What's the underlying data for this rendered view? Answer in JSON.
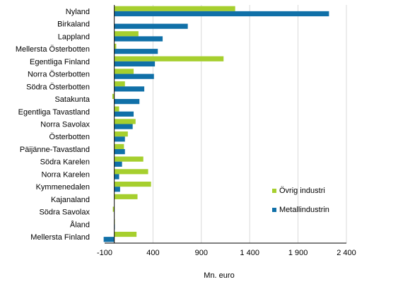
{
  "chart_data": {
    "type": "bar",
    "orientation": "horizontal",
    "title": "",
    "xlabel": "Mn. euro",
    "ylabel": "",
    "xlim": [
      -100,
      2400
    ],
    "xticks": [
      -100,
      400,
      900,
      1400,
      1900,
      2400
    ],
    "xtick_labels": [
      "-100",
      "400",
      "900",
      "1 400",
      "1 900",
      "2 400"
    ],
    "grid": "vertical",
    "legend_position": "right",
    "categories": [
      "Nyland",
      "Birkaland",
      "Lappland",
      "Mellersta Österbotten",
      "Egentliga Finland",
      "Norra Österbotten",
      "Södra Österbotten",
      "Satakunta",
      "Egentliga Tavastland",
      "Norra Savolax",
      "Österbotten",
      "Päijänne-Tavastland",
      "Södra Karelen",
      "Norra Karelen",
      "Kymmenedalen",
      "Kajanaland",
      "Södra Savolax",
      "Åland",
      "Mellersta Finland"
    ],
    "series": [
      {
        "name": "Övrig industri",
        "color": "#a6cf2e",
        "values": [
          1250,
          0,
          250,
          20,
          1130,
          200,
          110,
          -20,
          50,
          220,
          140,
          100,
          300,
          350,
          380,
          240,
          -15,
          5,
          230
        ]
      },
      {
        "name": "Metallindustrin",
        "color": "#1070a8",
        "values": [
          2220,
          760,
          500,
          450,
          420,
          410,
          310,
          260,
          200,
          190,
          110,
          110,
          80,
          50,
          60,
          0,
          0,
          5,
          -110
        ]
      }
    ]
  }
}
